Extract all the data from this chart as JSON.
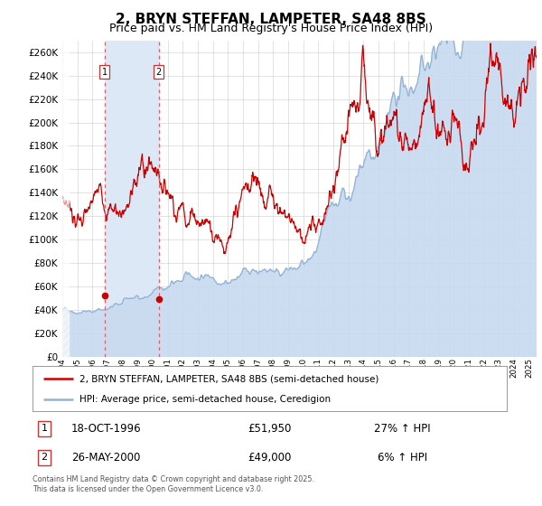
{
  "title": "2, BRYN STEFFAN, LAMPETER, SA48 8BS",
  "subtitle": "Price paid vs. HM Land Registry's House Price Index (HPI)",
  "title_fontsize": 11,
  "subtitle_fontsize": 9,
  "legend_line1": "2, BRYN STEFFAN, LAMPETER, SA48 8BS (semi-detached house)",
  "legend_line2": "HPI: Average price, semi-detached house, Ceredigion",
  "transaction1_date": "18-OCT-1996",
  "transaction1_price": "£51,950",
  "transaction1_hpi": "27% ↑ HPI",
  "transaction1_year": 1996.8,
  "transaction1_value": 51950,
  "transaction2_date": "26-MAY-2000",
  "transaction2_price": "£49,000",
  "transaction2_hpi": "6% ↑ HPI",
  "transaction2_year": 2000.4,
  "transaction2_value": 49000,
  "hpi_line_color": "#92b4d4",
  "hpi_fill_color": "#c8daf0",
  "price_color": "#cc0000",
  "dot_color": "#cc0000",
  "vline_color": "#e06060",
  "shade_color": "#dce8f5",
  "grid_color": "#cccccc",
  "background_color": "#ffffff",
  "ylim": [
    0,
    270000
  ],
  "yticks": [
    0,
    20000,
    40000,
    60000,
    80000,
    100000,
    120000,
    140000,
    160000,
    180000,
    200000,
    220000,
    240000,
    260000
  ],
  "xlim_start": 1994.0,
  "xlim_end": 2025.5,
  "footer": "Contains HM Land Registry data © Crown copyright and database right 2025.\nThis data is licensed under the Open Government Licence v3.0."
}
